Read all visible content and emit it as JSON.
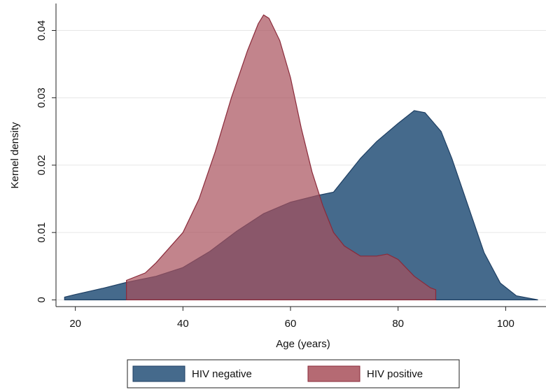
{
  "chart_data": {
    "type": "area",
    "xlabel": "Age (years)",
    "ylabel": "Kernel density",
    "xlim": [
      16.4,
      107.5
    ],
    "ylim": [
      -0.001,
      0.044
    ],
    "xticks": [
      20,
      40,
      60,
      80,
      100
    ],
    "yticks": [
      0,
      0.01,
      0.02,
      0.03,
      0.04
    ],
    "grid": true,
    "legend": "bottom",
    "series": [
      {
        "name": "HIV negative",
        "color": "#456a8c",
        "stroke": "#1e3f63",
        "x": [
          18,
          20,
          25,
          29.5,
          35,
          40,
          45,
          50,
          55,
          60,
          65,
          68,
          70,
          73,
          76,
          80,
          83,
          85,
          88,
          90,
          93,
          96,
          99,
          102,
          106
        ],
        "values": [
          0.0004,
          0.0008,
          0.0017,
          0.0026,
          0.0035,
          0.0048,
          0.0072,
          0.0102,
          0.0128,
          0.0145,
          0.0155,
          0.016,
          0.018,
          0.021,
          0.0235,
          0.0262,
          0.0281,
          0.0278,
          0.025,
          0.021,
          0.014,
          0.007,
          0.0025,
          0.0006,
          0
        ]
      },
      {
        "name": "HIV positive",
        "color": "#a8505b",
        "stroke": "#8a2a3a",
        "x": [
          29.5,
          33,
          35,
          40,
          43,
          46,
          49,
          52,
          54,
          55,
          56,
          58,
          60,
          62,
          64,
          66,
          68,
          70,
          73,
          76,
          78,
          80,
          83,
          86,
          87
        ],
        "values": [
          0.0029,
          0.004,
          0.0055,
          0.01,
          0.015,
          0.022,
          0.03,
          0.037,
          0.041,
          0.0423,
          0.0418,
          0.0385,
          0.033,
          0.0255,
          0.019,
          0.014,
          0.01,
          0.008,
          0.0065,
          0.0065,
          0.0068,
          0.006,
          0.0035,
          0.0018,
          0.0015
        ]
      }
    ]
  }
}
